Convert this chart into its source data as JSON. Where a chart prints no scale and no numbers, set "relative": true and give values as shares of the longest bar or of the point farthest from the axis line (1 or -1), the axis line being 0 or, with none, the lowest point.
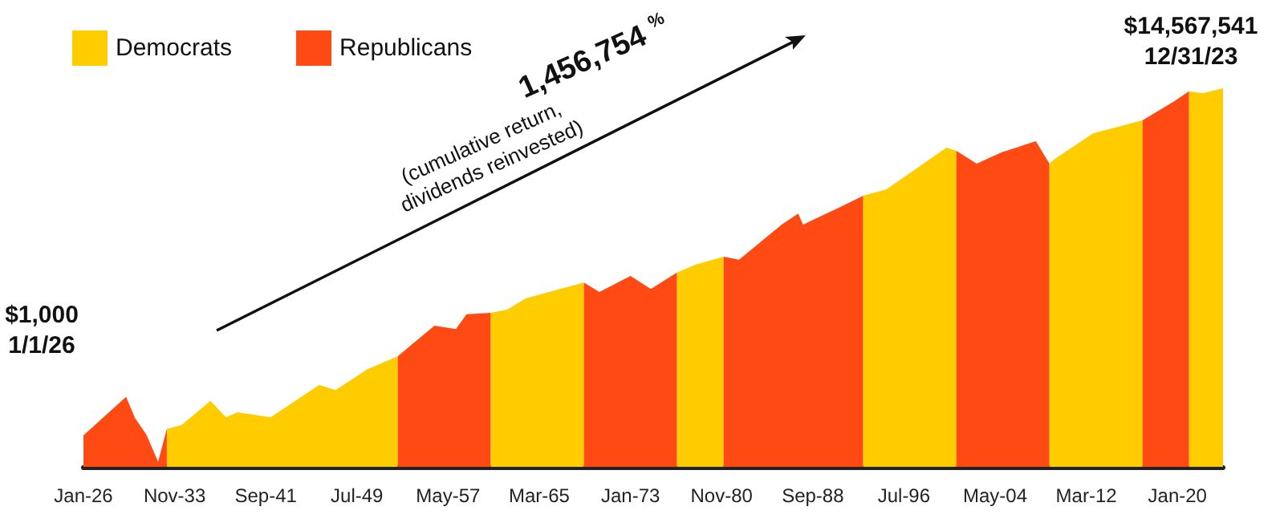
{
  "chart_data": {
    "type": "area",
    "relative": true,
    "series": [
      {
        "name": "Democrats",
        "color": "#ffcc00",
        "x": [
          "1933-03",
          "1934-06",
          "1936-12",
          "1938-04",
          "1939-04",
          "1942-02",
          "1946-04",
          "1947-09",
          "1950-06",
          "1953-01"
        ],
        "values": [
          0.1,
          0.11,
          0.174,
          0.131,
          0.144,
          0.131,
          0.216,
          0.203,
          0.258,
          0.292
        ]
      },
      {
        "name": "Republicans",
        "color": "#ff4a14",
        "x": [
          "1926-01",
          "1929-09",
          "1930-06",
          "1931-06",
          "1932-06",
          "1933-03"
        ],
        "values": [
          0.083,
          0.185,
          0.13,
          0.085,
          0.013,
          0.1
        ]
      },
      {
        "color": "#ff4a14",
        "x": [
          "1953-01",
          "1956-03",
          "1958-01",
          "1958-12",
          "1961-01"
        ],
        "values": [
          0.292,
          0.373,
          0.364,
          0.403,
          0.407
        ]
      },
      {
        "color": "#ffcc00",
        "x": [
          "1961-01",
          "1962-06",
          "1964-01",
          "1969-01"
        ],
        "values": [
          0.407,
          0.415,
          0.445,
          0.487
        ]
      },
      {
        "color": "#ff4a14",
        "x": [
          "1969-01",
          "1970-05",
          "1973-01",
          "1974-10",
          "1977-01"
        ],
        "values": [
          0.487,
          0.462,
          0.504,
          0.47,
          0.513
        ]
      },
      {
        "color": "#ffcc00",
        "x": [
          "1977-01",
          "1978-08",
          "1981-01"
        ],
        "values": [
          0.513,
          0.534,
          0.555
        ]
      },
      {
        "color": "#ff4a14",
        "x": [
          "1981-01",
          "1982-05",
          "1986-01",
          "1987-06",
          "1987-11",
          "1990-10",
          "1993-01"
        ],
        "values": [
          0.555,
          0.547,
          0.64,
          0.669,
          0.64,
          0.682,
          0.716
        ]
      },
      {
        "color": "#ffcc00",
        "x": [
          "1993-01",
          "1995-01",
          "2000-03",
          "2001-01"
        ],
        "values": [
          0.716,
          0.733,
          0.843,
          0.835
        ]
      },
      {
        "color": "#ff4a14",
        "x": [
          "2001-01",
          "2002-10",
          "2004-12",
          "2007-11",
          "2008-08",
          "2009-01"
        ],
        "values": [
          0.835,
          0.801,
          0.831,
          0.86,
          0.822,
          0.801
        ]
      },
      {
        "color": "#ffcc00",
        "x": [
          "2009-01",
          "2009-07",
          "2012-10",
          "2017-01"
        ],
        "values": [
          0.801,
          0.814,
          0.881,
          0.915
        ]
      },
      {
        "color": "#ff4a14",
        "x": [
          "2017-01",
          "2019-10",
          "2021-01"
        ],
        "values": [
          0.915,
          0.966,
          0.992
        ]
      },
      {
        "color": "#ffcc00",
        "x": [
          "2021-01",
          "2022-03",
          "2023-12"
        ],
        "values": [
          0.992,
          0.987,
          1
        ]
      }
    ],
    "xlim": [
      "1926-01",
      "2023-12"
    ],
    "xticks": [
      {
        "value": "1926-01",
        "label": "Jan-26"
      },
      {
        "value": "1933-11",
        "label": "Nov-33"
      },
      {
        "value": "1941-09",
        "label": "Sep-41"
      },
      {
        "value": "1949-07",
        "label": "Jul-49"
      },
      {
        "value": "1957-05",
        "label": "May-57"
      },
      {
        "value": "1965-03",
        "label": "Mar-65"
      },
      {
        "value": "1973-01",
        "label": "Jan-73"
      },
      {
        "value": "1980-11",
        "label": "Nov-80"
      },
      {
        "value": "1988-09",
        "label": "Sep-88"
      },
      {
        "value": "1996-07",
        "label": "Jul-96"
      },
      {
        "value": "2004-05",
        "label": "May-04"
      },
      {
        "value": "2012-03",
        "label": "Mar-12"
      },
      {
        "value": "2020-01",
        "label": "Jan-20"
      }
    ],
    "tick_labels": "x",
    "grid": false,
    "legend": "top left",
    "annotations": [
      "$1,000\n1/1/26",
      {
        "text": "$14,567,541\n12/31/23",
        "x": "2023-12",
        "y": 1
      },
      "1,456,754 $^{%}$",
      "(cumulative return,\ndividends reinvested)"
    ]
  }
}
